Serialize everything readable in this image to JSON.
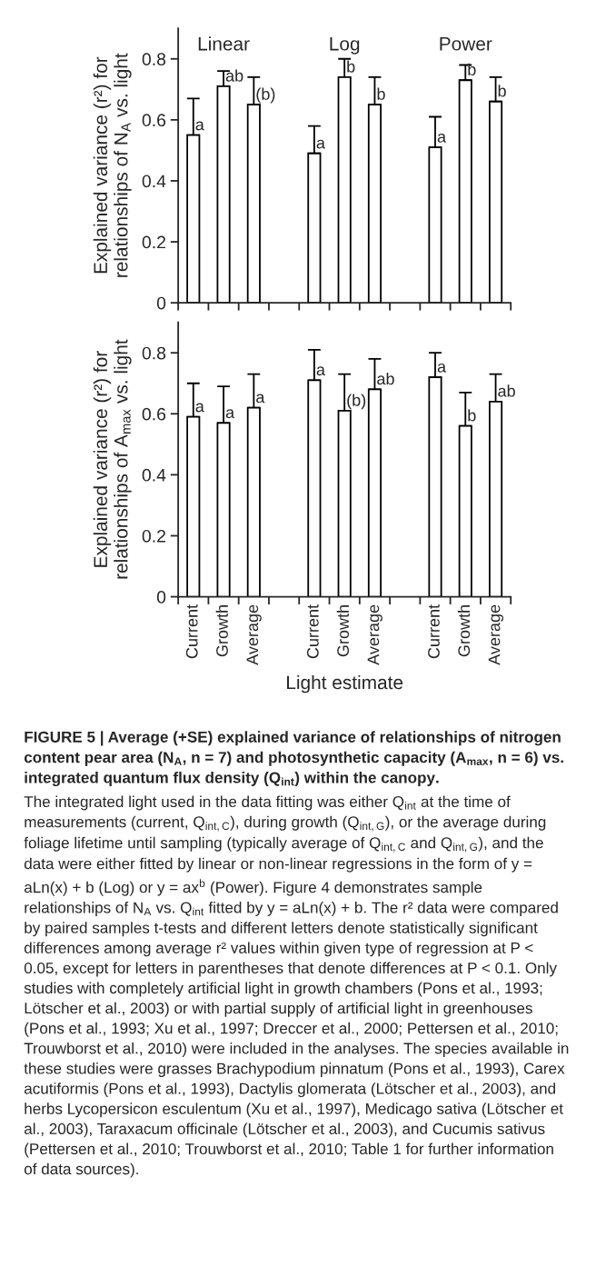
{
  "chart_data": [
    {
      "type": "bar",
      "categories": [
        null,
        null,
        null,
        null,
        null,
        null,
        null,
        null,
        null,
        null,
        null
      ],
      "values": [
        0.55,
        0.71,
        0.65,
        null,
        0.49,
        0.74,
        0.65,
        null,
        0.51,
        0.73,
        0.66
      ],
      "errors": [
        [
          0.55,
          0.67
        ],
        [
          0.71,
          0.76
        ],
        [
          0.65,
          0.74
        ],
        null,
        [
          0.49,
          0.58
        ],
        [
          0.74,
          0.8
        ],
        [
          0.65,
          0.74
        ],
        null,
        [
          0.51,
          0.61
        ],
        [
          0.73,
          0.78
        ],
        [
          0.66,
          0.74
        ]
      ],
      "value_labels": [
        "a",
        "ab",
        "(b)",
        null,
        "a",
        "b",
        "b",
        null,
        "a",
        "b",
        "b"
      ],
      "color": "#ffffff",
      "ylabel": "Explained variance (r²) for\nrelationships of N$_{A}$ vs. light",
      "ylim": [
        0,
        0.9
      ],
      "yticks": [
        0,
        0.2,
        0.4,
        0.6,
        0.8
      ],
      "tick_labels": "y",
      "annotations": [
        "Linear",
        "Log",
        "Power"
      ]
    },
    {
      "type": "bar",
      "categories": [
        "Current",
        "Growth",
        "Average",
        null,
        "Current",
        "Growth",
        "Average",
        null,
        "Current",
        "Growth",
        "Average"
      ],
      "values": [
        0.59,
        0.57,
        0.62,
        null,
        0.71,
        0.61,
        0.68,
        null,
        0.72,
        0.56,
        0.64
      ],
      "errors": [
        [
          0.59,
          0.7
        ],
        [
          0.57,
          0.69
        ],
        [
          0.62,
          0.73
        ],
        null,
        [
          0.71,
          0.81
        ],
        [
          0.61,
          0.73
        ],
        [
          0.68,
          0.78
        ],
        null,
        [
          0.72,
          0.8
        ],
        [
          0.56,
          0.67
        ],
        [
          0.64,
          0.73
        ]
      ],
      "value_labels": [
        "a",
        "a",
        "a",
        null,
        "a",
        "(b)",
        "ab",
        null,
        "a",
        "b",
        "ab"
      ],
      "color": "#ffffff",
      "xlabel": "Light estimate",
      "ylabel": "Explained variance (r²) for\nrelationships of A$_{max}$ vs. light",
      "ylim": [
        0,
        0.9
      ],
      "yticks": [
        0,
        0.2,
        0.4,
        0.6,
        0.8
      ],
      "annotations": [
        "FIGURE 5 | Average (+SE) explained variance of relationships of nitrogen content pear area (N$_{A}$, n = 7) and photosynthetic capacity (A$_{max}$, n = 6) vs. integrated quantum flux density (Q$_{int}$) within the canopy.",
        "The integrated light used in the data fitting was either Q$_{int}$ at the time of measurements (current, Q$_{int,C}$), during growth (Q$_{int,G}$), or the average during foliage lifetime until sampling (typically average of Q$_{int,C}$ and Q$_{int,G}$), and the data were either fitted by linear or non-linear regressions in the form of y = aLn(x) + b (Log) or y = ax$^{b}$ (Power). Figure 4 demonstrates sample relationships of N$_{A}$ vs. Q$_{int}$ fitted by y = aLn(x) + b. The r² data were compared by paired samples t-tests and different letters denote statistically significant differences among average r² values within given type of regression at P < 0.05, except for letters in parentheses that denote differences at P < 0.1. Only studies with completely artificial light in growth chambers (Pons et al., 1993; Lötscher et al., 2003) or with partial supply of artificial light in greenhouses (Pons et al., 1993; Xu et al., 1997; Dreccer et al., 2000; Pettersen et al., 2010; Trouwborst et al., 2010) were included in the analyses. The species available in these studies were grasses Brachypodium pinnatum (Pons et al., 1993), Carex acutiformis (Pons et al., 1993), Dactylis glomerata (Lötscher et al., 2003), and herbs Lycopersicon esculentum (Xu et al., 1997), Medicago sativa (Lötscher et al., 2003), Taraxacum officinale (Lötscher et al., 2003), and Cucumis sativus (Pettersen et al., 2010; Trouwborst et al., 2010; Table 1 for further information of data sources)."
      ]
    }
  ]
}
